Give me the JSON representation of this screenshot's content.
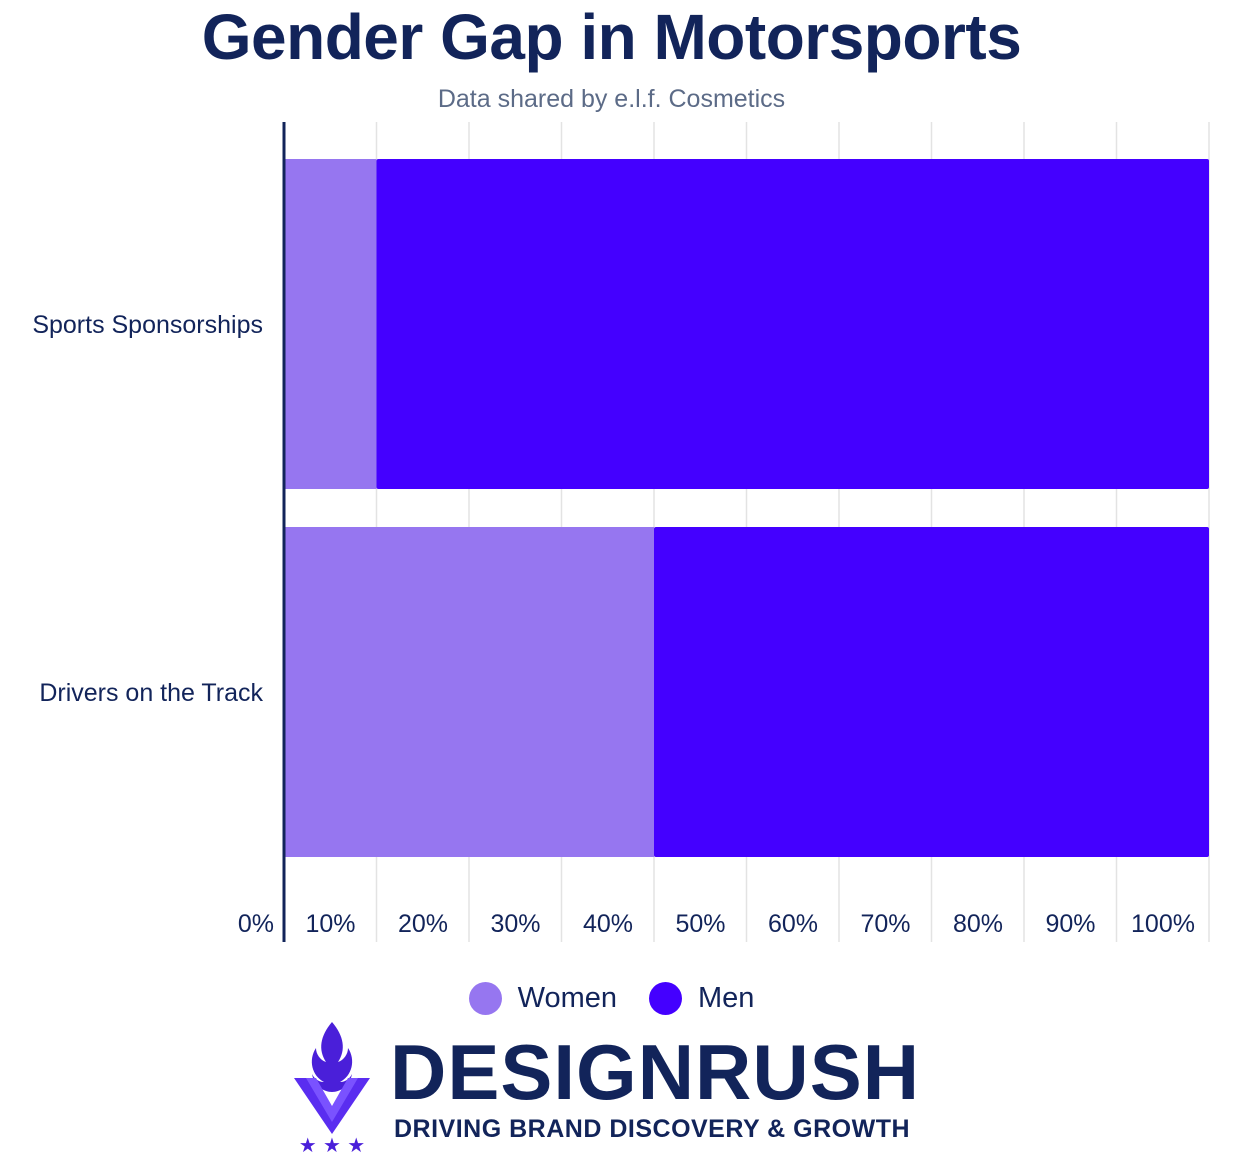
{
  "header": {
    "title": "Gender Gap in Motorsports",
    "subtitle": "Data shared by e.l.f. Cosmetics"
  },
  "colors": {
    "women": "#9676f0",
    "men": "#4400ff",
    "text": "#12245a",
    "grid": "#e3e3e3"
  },
  "chart_data": {
    "type": "bar",
    "orientation": "horizontal",
    "stacked": true,
    "categories": [
      "Sports Sponsorships",
      "Drivers on the Track"
    ],
    "series": [
      {
        "name": "Women",
        "values": [
          10,
          40
        ]
      },
      {
        "name": "Men",
        "values": [
          90,
          60
        ]
      }
    ],
    "xlim": [
      0,
      100
    ],
    "x_ticks": [
      "0%",
      "10%",
      "20%",
      "30%",
      "40%",
      "50%",
      "60%",
      "70%",
      "80%",
      "90%",
      "100%"
    ],
    "grid": true,
    "legend_position": "bottom"
  },
  "legend": {
    "women_label": "Women",
    "men_label": "Men"
  },
  "branding": {
    "wordmark": "DESIGNRUSH",
    "tagline": "DRIVING BRAND DISCOVERY & GROWTH",
    "stars": "★ ★ ★",
    "icon": "flame-shield-icon"
  }
}
